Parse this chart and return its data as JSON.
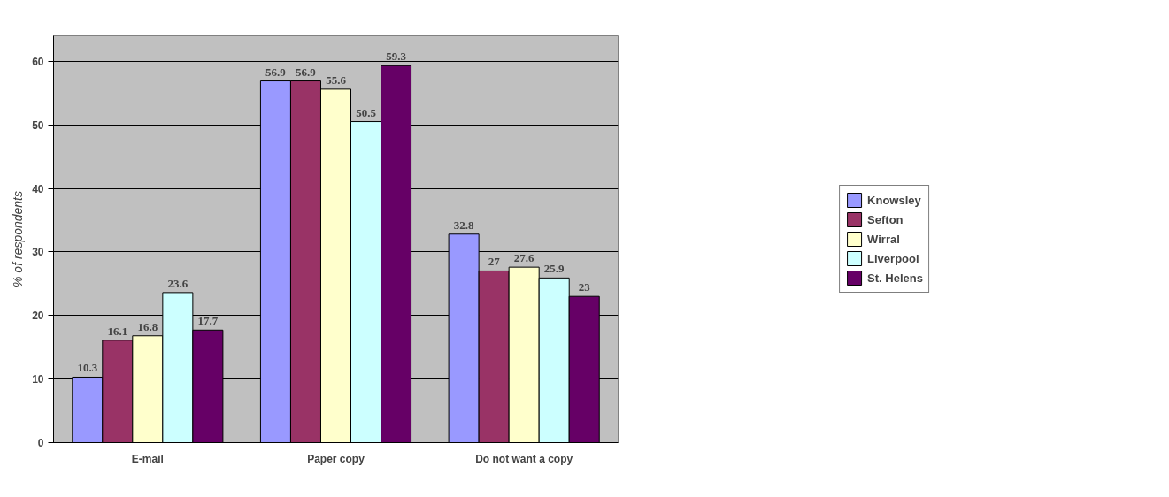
{
  "chart_data": {
    "type": "bar",
    "ylabel": "% of respondents",
    "categories": [
      "E-mail",
      "Paper copy",
      "Do not want a copy"
    ],
    "series": [
      {
        "name": "Knowsley",
        "color": "#9999ff",
        "values": [
          10.3,
          56.9,
          32.8
        ]
      },
      {
        "name": "Sefton",
        "color": "#993366",
        "values": [
          16.1,
          56.9,
          27
        ]
      },
      {
        "name": "Wirral",
        "color": "#ffffcc",
        "values": [
          16.8,
          55.6,
          27.6
        ]
      },
      {
        "name": "Liverpool",
        "color": "#ccffff",
        "values": [
          23.6,
          50.5,
          25.9
        ]
      },
      {
        "name": "St. Helens",
        "color": "#660066",
        "values": [
          17.7,
          59.3,
          23
        ]
      }
    ],
    "ylim": [
      0,
      64
    ],
    "yticks": [
      0,
      10,
      20,
      30,
      40,
      50,
      60
    ],
    "grid": "y",
    "legend": "right",
    "data_labels": true
  }
}
